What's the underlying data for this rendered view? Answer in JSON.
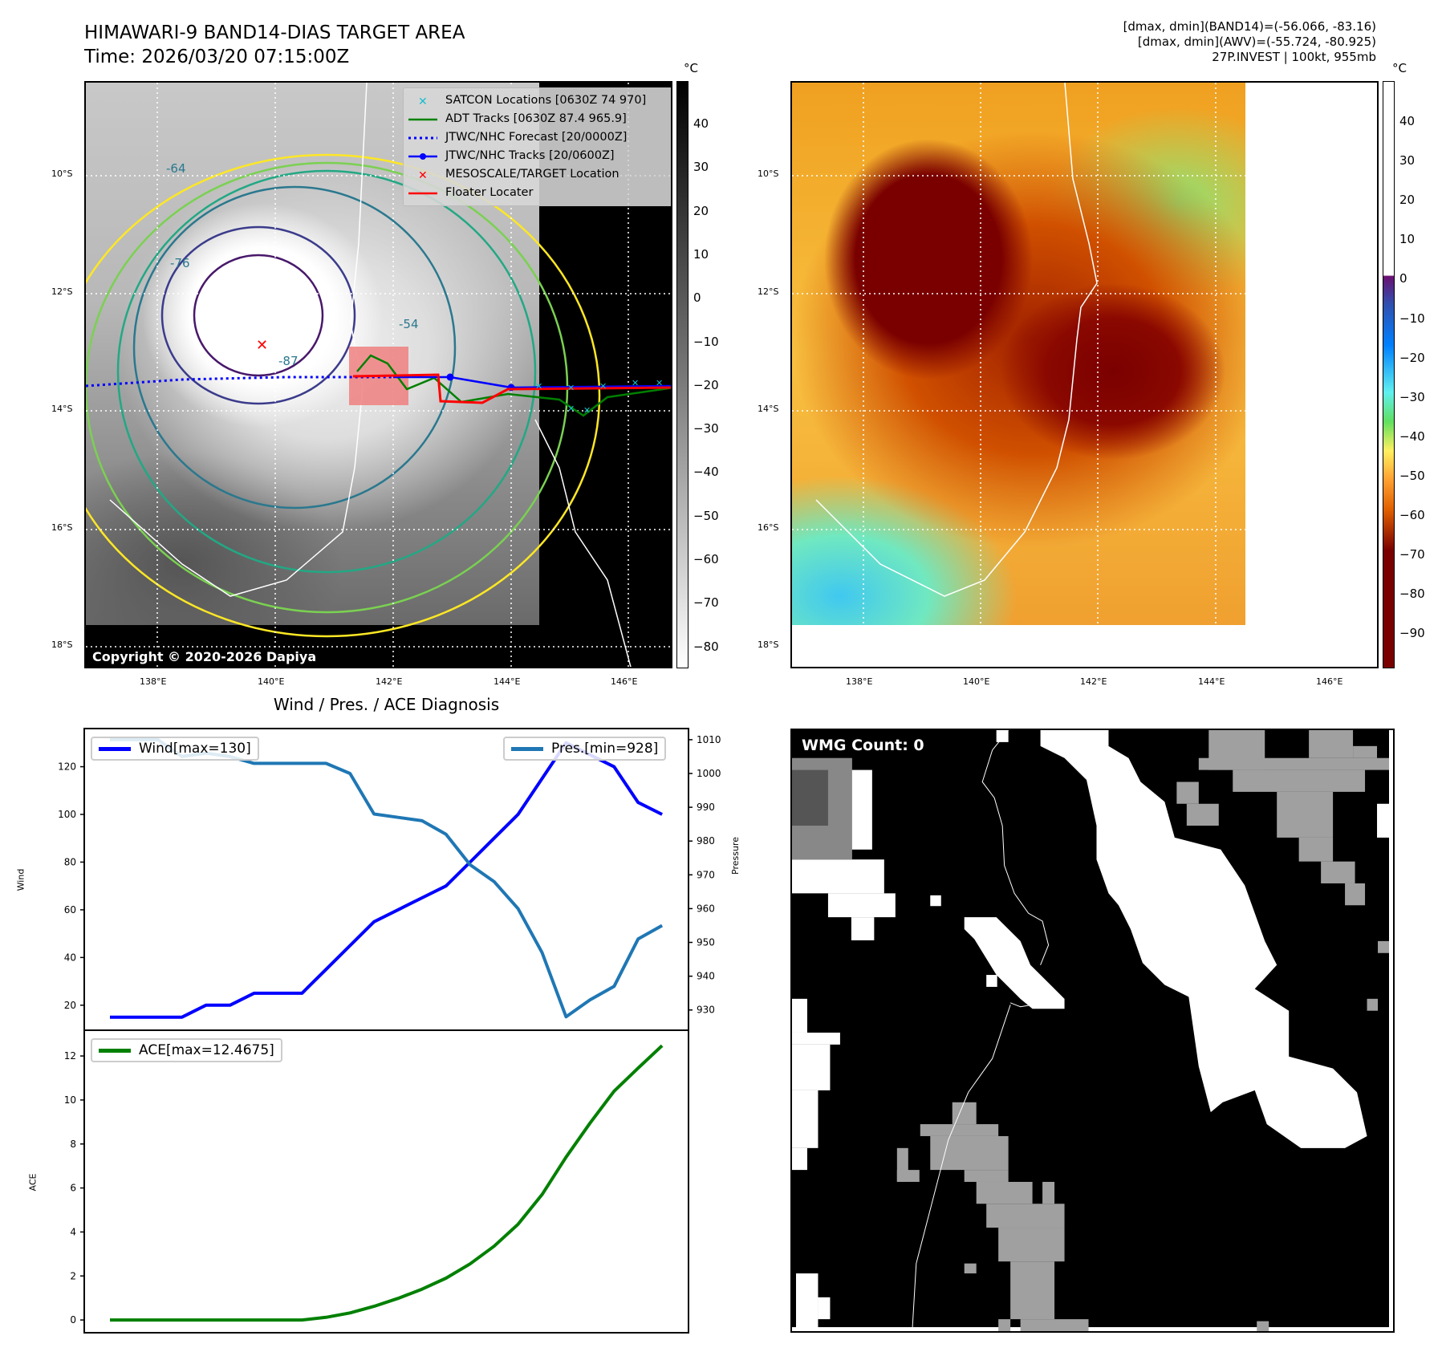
{
  "header": {
    "title_line1": "HIMAWARI-9 BAND14-DIAS TARGET AREA",
    "title_line2": "Time: 2026/03/20 07:15:00Z",
    "info_line1": "[dmax, dmin](BAND14)=(-56.066, -83.16)",
    "info_line2": "[dmax, dmin](AWV)=(-55.724, -80.925)",
    "info_line3": "27P.INVEST | 100kt, 955mb"
  },
  "map_left": {
    "legend": [
      {
        "label": "SATCON Locations [0630Z 74 970]",
        "icon": "x-marker-icon",
        "color": "#17becf"
      },
      {
        "label": "ADT Tracks [0630Z 87.4 965.9]",
        "icon": "solid-line-icon",
        "color": "#008000"
      },
      {
        "label": "JTWC/NHC Forecast [20/0000Z]",
        "icon": "dotted-line-icon",
        "color": "#0000ff"
      },
      {
        "label": "JTWC/NHC Tracks [20/0600Z]",
        "icon": "line-dot-icon",
        "color": "#0000ff"
      },
      {
        "label": "MESOSCALE/TARGET Location",
        "icon": "x-marker-icon",
        "color": "#ff0000"
      },
      {
        "label": "Floater Locater",
        "icon": "solid-line-icon",
        "color": "#ff0000"
      }
    ],
    "copyright": "Copyright © 2020-2026 Dapiya",
    "contour_labels": [
      "-64",
      "-76",
      "-54",
      "-87"
    ],
    "colorbar": {
      "unit": "°C",
      "ticks": [
        "40",
        "30",
        "20",
        "10",
        "0",
        "−10",
        "−20",
        "−30",
        "−40",
        "−50",
        "−60",
        "−70",
        "−80"
      ]
    }
  },
  "map_right": {
    "colorbar": {
      "unit": "°C",
      "ticks": [
        "40",
        "30",
        "20",
        "10",
        "0",
        "−10",
        "−20",
        "−30",
        "−40",
        "−50",
        "−60",
        "−70",
        "−80",
        "−90"
      ]
    }
  },
  "map_axes": {
    "lon_ticks": [
      "138°E",
      "140°E",
      "142°E",
      "144°E",
      "146°E"
    ],
    "lat_ticks": [
      "10°S",
      "12°S",
      "14°S",
      "16°S",
      "18°S"
    ]
  },
  "wmg": {
    "label": "WMG Count: 0"
  },
  "chart_data": [
    {
      "type": "line",
      "title": "Wind / Pres. / ACE Diagnosis",
      "x": [
        0,
        1,
        2,
        3,
        4,
        5,
        6,
        7,
        8,
        9,
        10,
        11,
        12,
        13,
        14,
        15,
        16,
        17,
        18,
        19,
        20,
        21,
        22,
        23
      ],
      "ylabel": "Wind",
      "y2label": "Pressure",
      "ylim": [
        9.5,
        136
      ],
      "y2lim": [
        924,
        1013.3
      ],
      "yticks": [
        20,
        40,
        60,
        80,
        100,
        120
      ],
      "y2ticks": [
        930,
        940,
        950,
        960,
        970,
        980,
        990,
        1000,
        1010
      ],
      "series": [
        {
          "name": "Wind[max=130]",
          "axis": "left",
          "color": "#0000ff",
          "values": [
            15,
            15,
            15,
            15,
            20,
            20,
            25,
            25,
            25,
            35,
            45,
            55,
            60,
            65,
            70,
            80,
            90,
            100,
            115,
            130,
            125,
            120,
            105,
            100
          ]
        },
        {
          "name": "Pres.[min=928]",
          "axis": "right",
          "color": "#1f77b4",
          "values": [
            1010,
            1010,
            1010,
            1005,
            1006,
            1005,
            1003,
            1003,
            1003,
            1003,
            1000,
            988,
            987,
            986,
            982,
            973,
            968,
            960,
            947,
            928,
            933,
            937,
            951,
            955
          ]
        }
      ]
    },
    {
      "type": "line",
      "x": [
        0,
        1,
        2,
        3,
        4,
        5,
        6,
        7,
        8,
        9,
        10,
        11,
        12,
        13,
        14,
        15,
        16,
        17,
        18,
        19,
        20,
        21,
        22,
        23
      ],
      "ylabel": "ACE",
      "ylim": [
        -0.58,
        13.17
      ],
      "yticks": [
        0,
        2,
        4,
        6,
        8,
        10,
        12
      ],
      "series": [
        {
          "name": "ACE[max=12.4675]",
          "color": "#008000",
          "values": [
            0,
            0,
            0,
            0,
            0,
            0,
            0,
            0,
            0,
            0.12,
            0.32,
            0.62,
            0.98,
            1.4,
            1.9,
            2.55,
            3.35,
            4.35,
            5.7,
            7.4,
            8.95,
            10.4,
            11.45,
            12.47
          ]
        }
      ]
    }
  ]
}
